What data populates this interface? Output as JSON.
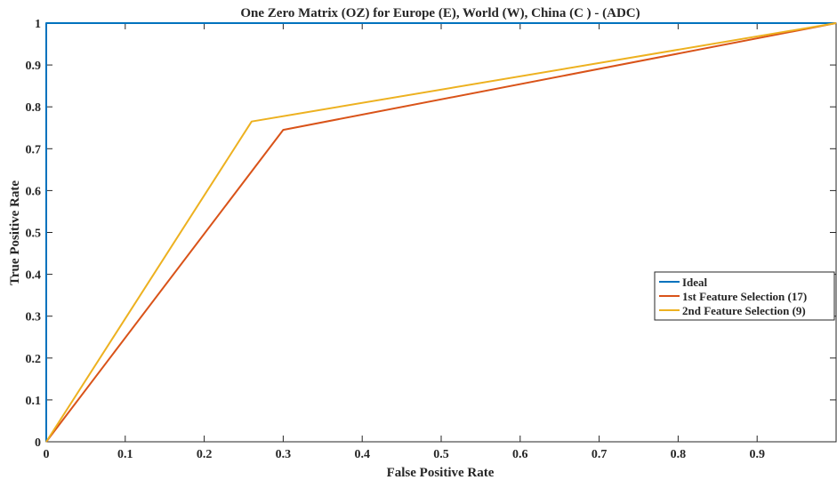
{
  "chart_data": {
    "type": "line",
    "title": "One Zero Matrix (OZ) for Europe (E), World (W), China (C ) - (ADC)",
    "xlabel": "False Positive Rate",
    "ylabel": "True Positive Rate",
    "xlim": [
      0,
      1
    ],
    "ylim": [
      0,
      1
    ],
    "xticks": [
      0,
      0.1,
      0.2,
      0.3,
      0.4,
      0.5,
      0.6,
      0.7,
      0.8,
      0.9
    ],
    "xtick_labels": [
      "0",
      "0.1",
      "0.2",
      "0.3",
      "0.4",
      "0.5",
      "0.6",
      "0.7",
      "0.8",
      "0.9"
    ],
    "yticks": [
      0,
      0.1,
      0.2,
      0.3,
      0.4,
      0.5,
      0.6,
      0.7,
      0.8,
      0.9,
      1
    ],
    "ytick_labels": [
      "0",
      "0.1",
      "0.2",
      "0.3",
      "0.4",
      "0.5",
      "0.6",
      "0.7",
      "0.8",
      "0.9",
      "1"
    ],
    "grid": false,
    "legend_position": "right",
    "series": [
      {
        "name": "Ideal",
        "color": "#0072BD",
        "x": [
          0,
          0,
          1
        ],
        "y": [
          0,
          1,
          1
        ]
      },
      {
        "name": "1st Feature Selection (17)",
        "color": "#D95319",
        "x": [
          0,
          0.3,
          1
        ],
        "y": [
          0,
          0.745,
          1
        ]
      },
      {
        "name": "2nd Feature Selection (9)",
        "color": "#EDB120",
        "x": [
          0,
          0.26,
          1
        ],
        "y": [
          0,
          0.765,
          1
        ]
      }
    ]
  }
}
